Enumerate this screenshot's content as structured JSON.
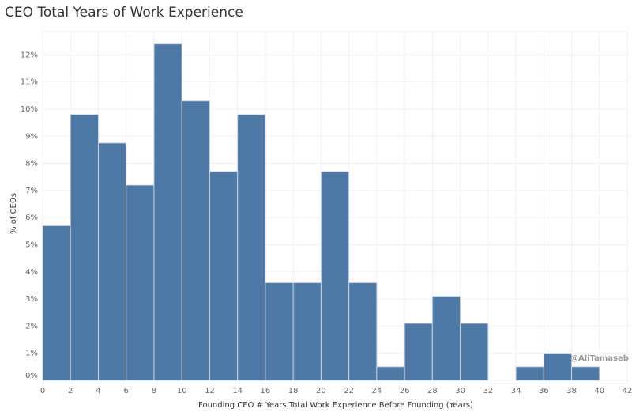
{
  "chart_data": {
    "type": "bar",
    "title": "CEO Total Years of Work Experience",
    "xlabel": "Founding CEO # Years Total Work Experience Before Founding (Years)",
    "ylabel": "% of CEOs",
    "bin_width": 2,
    "bins_start": [
      0,
      2,
      4,
      6,
      8,
      10,
      12,
      14,
      16,
      18,
      20,
      22,
      24,
      26,
      28,
      30,
      32,
      34,
      36,
      38
    ],
    "values": [
      5.7,
      9.8,
      8.75,
      7.2,
      12.4,
      10.3,
      7.7,
      9.8,
      3.6,
      3.6,
      7.7,
      3.6,
      0.5,
      2.1,
      3.1,
      2.1,
      0,
      0.5,
      1.0,
      0.5
    ],
    "xlim": [
      0,
      42
    ],
    "ylim": [
      0,
      12.6
    ],
    "x_ticks": [
      "0",
      "2",
      "4",
      "6",
      "8",
      "10",
      "12",
      "14",
      "16",
      "18",
      "20",
      "22",
      "24",
      "26",
      "28",
      "30",
      "32",
      "34",
      "36",
      "38",
      "40",
      "42"
    ],
    "y_ticks": [
      "0%",
      "1%",
      "2%",
      "3%",
      "4%",
      "5%",
      "6%",
      "7%",
      "8%",
      "9%",
      "10%",
      "11%",
      "12%"
    ],
    "grid": true,
    "bar_color": "#4e79a7",
    "annotation": "@AliTamaseb"
  }
}
